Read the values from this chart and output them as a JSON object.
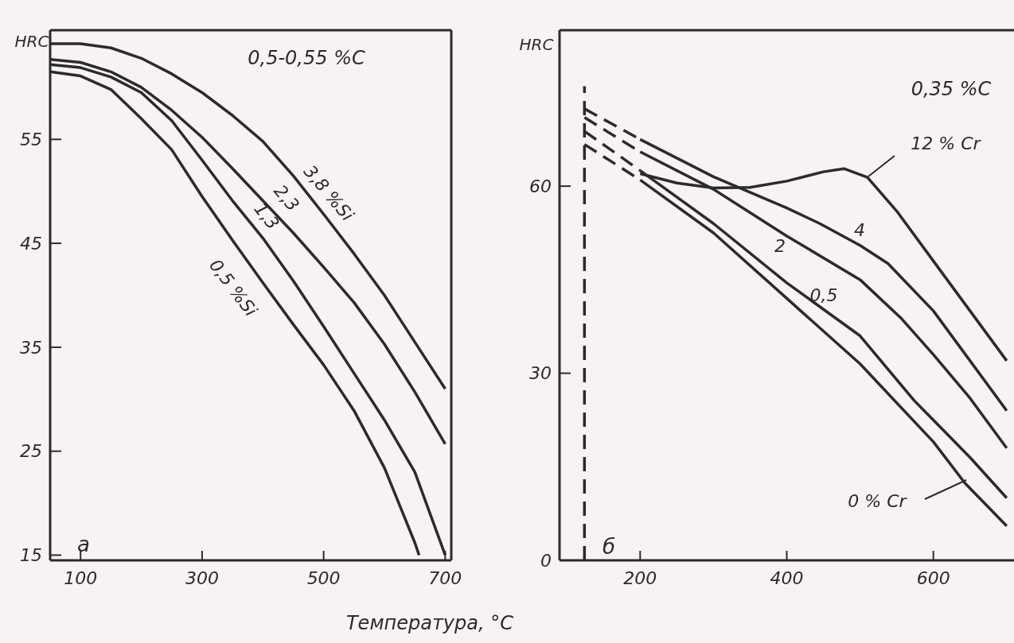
{
  "chart_data": [
    {
      "type": "line",
      "ylabel": "HRC",
      "xlabel": "Температура, °C",
      "annotations": [
        "0,5-0,55 %C",
        "а"
      ],
      "xlim": [
        50,
        710
      ],
      "xticks": [
        100,
        300,
        500,
        700
      ],
      "ylim": [
        14.5,
        65.5
      ],
      "yticks": [
        15,
        25,
        35,
        45,
        55
      ],
      "series": [
        {
          "name": "3,8 %Si",
          "color": "#2b2b2b",
          "x": [
            50,
            100,
            150,
            200,
            250,
            300,
            350,
            400,
            450,
            500,
            550,
            600,
            650,
            700
          ],
          "values": [
            64.2,
            64.2,
            63.8,
            62.8,
            61.3,
            59.5,
            57.3,
            54.8,
            51.5,
            47.8,
            44,
            40,
            35.5,
            31
          ]
        },
        {
          "name": "2,3",
          "color": "#2b2b2b",
          "x": [
            50,
            100,
            150,
            200,
            250,
            300,
            350,
            400,
            450,
            500,
            550,
            600,
            650,
            700
          ],
          "values": [
            62.7,
            62.4,
            61.5,
            60,
            57.8,
            55.2,
            52.2,
            49.1,
            46,
            42.7,
            39.3,
            35.3,
            30.7,
            25.7
          ]
        },
        {
          "name": "1,3",
          "color": "#2b2b2b",
          "x": [
            50,
            100,
            150,
            200,
            250,
            300,
            350,
            400,
            450,
            500,
            550,
            600,
            650,
            700
          ],
          "values": [
            62.2,
            61.9,
            61,
            59.5,
            56.8,
            53,
            49.1,
            45.5,
            41.4,
            37,
            32.5,
            28,
            23,
            15
          ]
        },
        {
          "name": "0,5 %Si",
          "color": "#2b2b2b",
          "x": [
            50,
            100,
            150,
            200,
            250,
            300,
            350,
            400,
            450,
            500,
            550,
            600,
            650,
            657
          ],
          "values": [
            61.5,
            61.1,
            59.8,
            57,
            54,
            49.5,
            45.3,
            41.2,
            37.2,
            33.3,
            28.9,
            23.4,
            16.2,
            15
          ]
        }
      ]
    },
    {
      "type": "line",
      "ylabel": "HRC",
      "annotations": [
        "0,35 %C",
        "б"
      ],
      "xlim": [
        90,
        710
      ],
      "xticks": [
        200,
        400,
        600
      ],
      "ylim": [
        0,
        85
      ],
      "yticks": [
        0,
        30,
        60
      ],
      "series": [
        {
          "name": "12 % Cr",
          "color": "#2b2b2b",
          "x": [
            200,
            250,
            300,
            350,
            400,
            450,
            478,
            510,
            550,
            600,
            650,
            700
          ],
          "values": [
            62,
            60.5,
            59.7,
            59.8,
            60.8,
            62.3,
            62.8,
            61.4,
            56,
            48,
            40,
            32
          ]
        },
        {
          "name": "4",
          "color": "#2b2b2b",
          "x": [
            200,
            300,
            400,
            445,
            500,
            538,
            600,
            650,
            700
          ],
          "values": [
            67.5,
            61.5,
            56.5,
            54,
            50.5,
            47.6,
            40,
            32,
            24
          ]
        },
        {
          "name": "2",
          "color": "#2b2b2b",
          "x": [
            200,
            300,
            400,
            500,
            557,
            600,
            650,
            700
          ],
          "values": [
            65.5,
            59.5,
            52,
            45,
            38.7,
            33,
            26,
            18
          ]
        },
        {
          "name": "0,5",
          "color": "#2b2b2b",
          "x": [
            200,
            300,
            400,
            500,
            574,
            600,
            650,
            700
          ],
          "values": [
            62.5,
            54,
            44.5,
            36,
            25.6,
            22.5,
            16.5,
            10
          ]
        },
        {
          "name": "0 % Cr",
          "color": "#2b2b2b",
          "x": [
            200,
            300,
            400,
            500,
            600,
            643,
            700
          ],
          "values": [
            61,
            52.5,
            42,
            31.5,
            19,
            12.4,
            5.5
          ]
        },
        {
          "color": "#2b2b2b",
          "line_style": "dashed",
          "x": [
            124,
            200
          ],
          "values": [
            72.4,
            67.5
          ]
        },
        {
          "color": "#2b2b2b",
          "line_style": "dashed",
          "x": [
            124,
            200
          ],
          "values": [
            71,
            65.5
          ]
        },
        {
          "color": "#2b2b2b",
          "line_style": "dashed",
          "x": [
            124,
            200
          ],
          "values": [
            68.8,
            62.5
          ]
        },
        {
          "color": "#2b2b2b",
          "line_style": "dashed",
          "x": [
            124,
            200
          ],
          "values": [
            66.7,
            61
          ]
        },
        {
          "color": "#2b2b2b",
          "line_style": "dashed",
          "x": [
            124,
            124
          ],
          "values": [
            0,
            76
          ]
        }
      ]
    }
  ]
}
